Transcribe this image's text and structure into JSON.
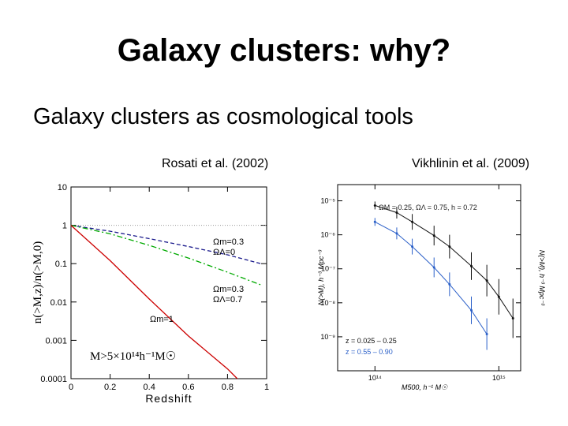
{
  "slide": {
    "title": "Galaxy clusters: why?",
    "subtitle": "Galaxy clusters as cosmological tools",
    "left_citation": "Rosati et al. (2002)",
    "right_citation": "Vikhlinin et al. (2009)"
  },
  "chart_data": [
    {
      "type": "line",
      "title": "",
      "xlabel": "Redshift",
      "ylabel": "n(>M,z)/n(>M,0)",
      "y_scale": "log",
      "xlim": [
        0,
        1
      ],
      "ylim": [
        0.0001,
        10
      ],
      "x_ticks": [
        "0",
        "0.2",
        "0.4",
        "0.6",
        "0.8",
        "1"
      ],
      "y_ticks": [
        "0.0001",
        "0.001",
        "0.01",
        "0.1",
        "1",
        "10"
      ],
      "annotations": [
        "Ωm=0.3",
        "ΩΛ=0",
        "Ωm=0.3",
        "ΩΛ=0.7",
        "Ωm=1",
        "M>5×10¹⁴h⁻¹M☉"
      ],
      "series": [
        {
          "color": "#1a1a8c",
          "style": "dashed",
          "x": [
            0,
            0.2,
            0.4,
            0.6,
            0.8,
            0.97
          ],
          "y": [
            1,
            0.7,
            0.45,
            0.28,
            0.17,
            0.1
          ]
        },
        {
          "color": "#00aa00",
          "style": "dash-dot",
          "x": [
            0,
            0.2,
            0.4,
            0.6,
            0.8,
            0.97
          ],
          "y": [
            1,
            0.6,
            0.3,
            0.14,
            0.06,
            0.028
          ]
        },
        {
          "color": "#cc0000",
          "style": "solid",
          "x": [
            0,
            0.2,
            0.4,
            0.6,
            0.8,
            0.85
          ],
          "y": [
            1,
            0.12,
            0.012,
            0.0013,
            0.00018,
            0.0001
          ]
        }
      ],
      "reference_line": {
        "y": 1,
        "color": "#999999",
        "style": "dotted"
      }
    },
    {
      "type": "scatter",
      "title": "",
      "xlabel": "M500, h⁻¹ M☉",
      "ylabel": "N(>M), h⁻³ Mpc⁻³",
      "x_scale": "log",
      "y_scale": "log",
      "xlim": [
        50000000000000,
        1500000000000000
      ],
      "ylim": [
        1e-10,
        3e-05
      ],
      "x_ticks": [
        "10¹⁴",
        "10¹⁵"
      ],
      "y_ticks": [
        "10⁻⁵",
        "10⁻⁶",
        "10⁻⁷",
        "10⁻⁸",
        "10⁻⁹"
      ],
      "annotations": [
        "ΩM = 0.25, ΩΛ = 0.75, h = 0.72"
      ],
      "series": [
        {
          "name": "z = 0.025 – 0.25",
          "color": "#111111",
          "x": [
            100000000000000,
            150000000000000,
            200000000000000,
            300000000000000,
            400000000000000,
            600000000000000,
            800000000000000,
            1000000000000000,
            1300000000000000
          ],
          "y": [
            7.3e-06,
            4.5e-06,
            2.4e-06,
            9.5e-07,
            4.5e-07,
            1.2e-07,
            4.5e-08,
            1.5e-08,
            3.5e-09
          ]
        },
        {
          "name": "z = 0.55 – 0.90",
          "color": "#2a5fc8",
          "x": [
            100000000000000,
            150000000000000,
            200000000000000,
            300000000000000,
            400000000000000,
            600000000000000,
            800000000000000
          ],
          "y": [
            2.4e-06,
            1.1e-06,
            4.5e-07,
            1.1e-07,
            3.5e-08,
            6e-09,
            1.2e-09
          ]
        }
      ]
    }
  ]
}
